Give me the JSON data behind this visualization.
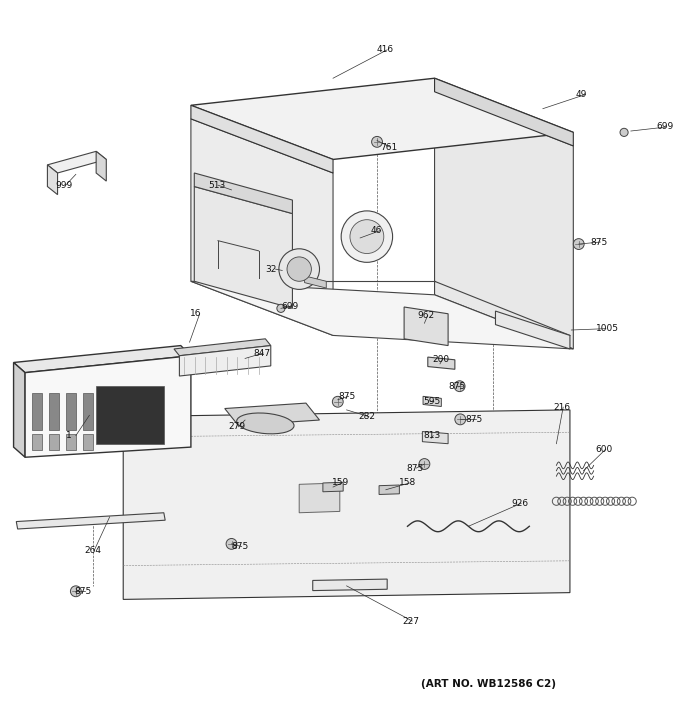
{
  "title": "",
  "art_no": "(ART NO. WB12586 C2)",
  "background_color": "#ffffff",
  "line_color": "#000000",
  "label_color": "#000000",
  "fig_width": 6.8,
  "fig_height": 7.25,
  "dpi": 100
}
